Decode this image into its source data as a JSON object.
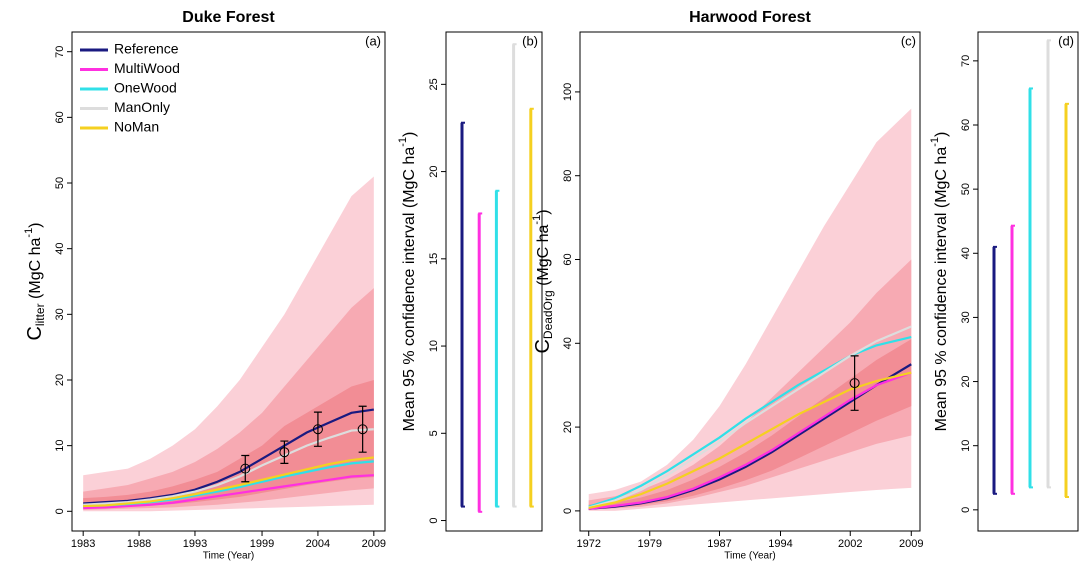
{
  "chart_data": [
    {
      "type": "line",
      "title": "Duke Forest",
      "panel": "(a)",
      "x_label": "Time (Year)",
      "y_label": {
        "main": "C",
        "sub": "litter",
        "unit": " (MgC ha",
        "sup": "-1",
        "close": ")"
      },
      "x": [
        1983,
        1985,
        1987,
        1989,
        1991,
        1993,
        1995,
        1997,
        1999,
        2001,
        2003,
        2005,
        2007,
        2009
      ],
      "xlim": [
        1982,
        2010
      ],
      "xticks": [
        1983,
        1988,
        1993,
        1999,
        2004,
        2009
      ],
      "ylim": [
        -3,
        73
      ],
      "yticks": [
        0,
        10,
        20,
        30,
        40,
        50,
        60,
        70
      ],
      "legend": "top-left",
      "bands": [
        {
          "color": "#fbd0d7",
          "lower": [
            0,
            0,
            0,
            0,
            0.1,
            0.2,
            0.3,
            0.4,
            0.5,
            0.6,
            0.7,
            0.8,
            0.9,
            1
          ],
          "upper": [
            5.5,
            6,
            6.5,
            8,
            10,
            12.5,
            16,
            20,
            25,
            30,
            36,
            42,
            48,
            51
          ]
        },
        {
          "color": "#f7aab3",
          "lower": [
            0.2,
            0.3,
            0.4,
            0.5,
            0.6,
            0.8,
            1,
            1.3,
            1.6,
            2,
            2.4,
            2.8,
            3.2,
            3.5
          ],
          "upper": [
            3,
            3.5,
            4,
            5,
            6,
            7.5,
            9.5,
            12,
            15,
            19,
            23,
            27,
            31,
            34
          ]
        },
        {
          "color": "#f28d95",
          "lower": [
            0.5,
            0.6,
            0.7,
            0.9,
            1.1,
            1.4,
            1.8,
            2.2,
            2.8,
            3.4,
            4,
            4.5,
            5,
            5.2
          ],
          "upper": [
            2,
            2.2,
            2.5,
            3,
            3.8,
            4.8,
            6,
            8,
            10,
            13,
            15,
            17,
            19,
            20
          ]
        }
      ],
      "series": [
        {
          "name": "Reference",
          "color": "#1a1a80",
          "values": [
            1.2,
            1.4,
            1.6,
            2,
            2.5,
            3.3,
            4.5,
            6,
            8,
            10,
            12,
            13.5,
            15,
            15.5
          ]
        },
        {
          "name": "MultiWood",
          "color": "#ff30e0",
          "values": [
            0.5,
            0.6,
            0.8,
            1,
            1.3,
            1.8,
            2.3,
            2.8,
            3.3,
            3.8,
            4.3,
            4.8,
            5.3,
            5.5
          ]
        },
        {
          "name": "OneWood",
          "color": "#30e0e8",
          "values": [
            0.8,
            0.9,
            1.1,
            1.4,
            1.8,
            2.4,
            3,
            3.7,
            4.5,
            5.3,
            6,
            6.7,
            7.3,
            7.6
          ]
        },
        {
          "name": "ManOnly",
          "color": "#dddddd",
          "values": [
            1,
            1.2,
            1.4,
            1.8,
            2.3,
            3,
            4,
            5.3,
            7,
            8.5,
            10,
            11.2,
            12.3,
            12.5
          ]
        },
        {
          "name": "NoMan",
          "color": "#f5d020",
          "values": [
            0.8,
            0.9,
            1.2,
            1.5,
            2,
            2.6,
            3.3,
            4,
            4.8,
            5.6,
            6.4,
            7.2,
            7.8,
            8.2
          ]
        }
      ],
      "observations": {
        "x": [
          1997.5,
          2001,
          2004,
          2008
        ],
        "values": [
          6.5,
          9,
          12.5,
          12.5
        ],
        "errors": [
          2,
          1.7,
          2.6,
          3.5
        ]
      }
    },
    {
      "type": "interval",
      "panel": "(b)",
      "y_label": {
        "main": "Mean 95 % confidence interval",
        "unit": " (MgC ha",
        "sup": "-1",
        "close": ")"
      },
      "ylim": [
        -0.6,
        28
      ],
      "yticks": [
        0,
        5,
        10,
        15,
        20,
        25
      ],
      "series": [
        {
          "color": "#1a1a80",
          "values": [
            0.8,
            22.8
          ]
        },
        {
          "color": "#ff30e0",
          "values": [
            0.5,
            17.6
          ]
        },
        {
          "color": "#30e0e8",
          "values": [
            0.8,
            18.9
          ]
        },
        {
          "color": "#dddddd",
          "values": [
            0.8,
            27.3
          ]
        },
        {
          "color": "#f5d020",
          "values": [
            0.8,
            23.6
          ]
        }
      ]
    },
    {
      "type": "line",
      "title": "Harwood Forest",
      "panel": "(c)",
      "x_label": "Time (Year)",
      "y_label": {
        "main": "C",
        "sub": "DeadOrg",
        "unit": " (MgC ha",
        "sup": "-1",
        "close": ")"
      },
      "x": [
        1972,
        1975,
        1978,
        1981,
        1984,
        1987,
        1990,
        1993,
        1996,
        1999,
        2002,
        2005,
        2009
      ],
      "xlim": [
        1971,
        2010
      ],
      "xticks": [
        1972,
        1979,
        1987,
        1994,
        2002,
        2009
      ],
      "ylim": [
        -4.8,
        114.3
      ],
      "yticks": [
        0,
        20,
        40,
        60,
        80,
        100
      ],
      "bands": [
        {
          "color": "#fbd0d7",
          "lower": [
            0,
            0,
            0.5,
            1,
            1.5,
            2,
            2.5,
            3,
            3.5,
            4,
            4.5,
            5,
            5.5
          ],
          "upper": [
            4,
            5,
            7,
            11,
            17,
            25,
            35,
            46,
            57,
            68,
            78,
            88,
            96
          ]
        },
        {
          "color": "#f7aab3",
          "lower": [
            0.3,
            0.6,
            1,
            1.8,
            3,
            4.5,
            6,
            8,
            10,
            12,
            14,
            16,
            18
          ],
          "upper": [
            2.5,
            3.5,
            5,
            7.5,
            11,
            15.5,
            21,
            27,
            33,
            39,
            45,
            52,
            60
          ]
        },
        {
          "color": "#f28d95",
          "lower": [
            0.5,
            0.8,
            1.4,
            2.3,
            3.6,
            5.3,
            7.3,
            9.6,
            12.5,
            15.5,
            18.5,
            21.5,
            25
          ],
          "upper": [
            1.5,
            2,
            3.2,
            5,
            7.5,
            10.5,
            14,
            18,
            22.5,
            27,
            31.5,
            36,
            41
          ]
        }
      ],
      "series": [
        {
          "name": "Reference",
          "color": "#1a1a80",
          "values": [
            0.5,
            1,
            1.8,
            3,
            5,
            7.5,
            10.5,
            14,
            18,
            22,
            26,
            30,
            35
          ]
        },
        {
          "name": "MultiWood",
          "color": "#ff30e0",
          "values": [
            0.5,
            1.2,
            2,
            3.3,
            5.3,
            8,
            11,
            14.5,
            18.5,
            22.5,
            26.5,
            30,
            33
          ]
        },
        {
          "name": "OneWood",
          "color": "#30e0e8",
          "values": [
            1,
            3,
            6,
            9.5,
            13.5,
            17.5,
            22,
            26,
            30,
            33.5,
            37,
            39.5,
            41.5
          ]
        },
        {
          "name": "ManOnly",
          "color": "#dddddd",
          "values": [
            0.8,
            2.5,
            5,
            8.5,
            12.5,
            16.5,
            21,
            25,
            29,
            33,
            37,
            40.5,
            44
          ]
        },
        {
          "name": "NoMan",
          "color": "#f5d020",
          "values": [
            0.7,
            2,
            4,
            6.5,
            9.5,
            12.5,
            16,
            19.5,
            23,
            26,
            29,
            31,
            33
          ]
        }
      ],
      "observations": {
        "x": [
          2002.5
        ],
        "values": [
          30.5
        ],
        "errors": [
          6.5
        ]
      }
    },
    {
      "type": "interval",
      "panel": "(d)",
      "y_label": {
        "main": "Mean 95 % confidence interval",
        "unit": " (MgC ha",
        "sup": "-1",
        "close": ")"
      },
      "ylim": [
        -3.3,
        74.5
      ],
      "yticks": [
        0,
        10,
        20,
        30,
        40,
        50,
        60,
        70
      ],
      "series": [
        {
          "color": "#1a1a80",
          "values": [
            2.5,
            41
          ]
        },
        {
          "color": "#ff30e0",
          "values": [
            2.5,
            44.3
          ]
        },
        {
          "color": "#30e0e8",
          "values": [
            3.5,
            65.7
          ]
        },
        {
          "color": "#dddddd",
          "values": [
            3.5,
            73.2
          ]
        },
        {
          "color": "#f5d020",
          "values": [
            2,
            63.3
          ]
        }
      ]
    }
  ]
}
